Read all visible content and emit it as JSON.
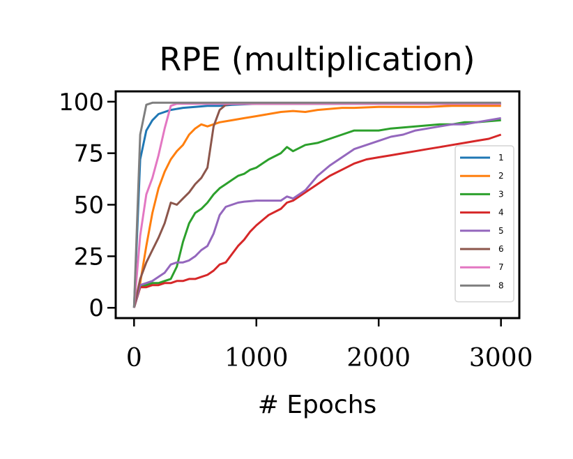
{
  "chart_data": {
    "type": "line",
    "title": "RPE (multiplication)",
    "xlabel": "# Epochs",
    "ylabel": "",
    "xlim": [
      -150,
      3150
    ],
    "ylim": [
      -5,
      105
    ],
    "xticks": [
      0,
      1000,
      2000,
      3000
    ],
    "yticks": [
      0,
      25,
      50,
      75,
      100
    ],
    "grid": false,
    "legend_position": "right",
    "series": [
      {
        "name": "1",
        "color": "#1f77b4",
        "x": [
          0,
          50,
          100,
          150,
          200,
          250,
          300,
          400,
          500,
          600,
          700,
          800,
          1000,
          1500,
          2000,
          2500,
          3000
        ],
        "y": [
          0,
          72,
          86,
          91,
          94,
          95,
          96,
          97,
          97.5,
          98,
          98,
          98.5,
          99,
          99,
          99,
          99,
          99
        ]
      },
      {
        "name": "2",
        "color": "#ff7f0e",
        "x": [
          0,
          50,
          100,
          150,
          200,
          250,
          300,
          350,
          400,
          450,
          500,
          550,
          600,
          700,
          800,
          900,
          1000,
          1100,
          1200,
          1300,
          1400,
          1500,
          1600,
          1700,
          1800,
          2000,
          2200,
          2400,
          2600,
          2800,
          3000
        ],
        "y": [
          0,
          12,
          30,
          46,
          58,
          66,
          72,
          76,
          79,
          84,
          87,
          89,
          88,
          90,
          91,
          92,
          93,
          94,
          95,
          95.5,
          95,
          96,
          96.5,
          97,
          97,
          97.5,
          97.5,
          97.5,
          98,
          98,
          98
        ]
      },
      {
        "name": "3",
        "color": "#2ca02c",
        "x": [
          0,
          50,
          100,
          150,
          200,
          250,
          300,
          350,
          400,
          450,
          500,
          550,
          600,
          650,
          700,
          750,
          800,
          850,
          900,
          950,
          1000,
          1100,
          1200,
          1250,
          1300,
          1400,
          1500,
          1600,
          1700,
          1800,
          1900,
          2000,
          2100,
          2200,
          2300,
          2400,
          2500,
          2600,
          2700,
          2800,
          2900,
          3000
        ],
        "y": [
          0,
          10,
          11,
          12,
          12,
          13,
          14,
          20,
          32,
          41,
          46,
          48,
          51,
          55,
          58,
          60,
          62,
          64,
          65,
          67,
          68,
          72,
          75,
          78,
          76,
          79,
          80,
          82,
          84,
          86,
          86,
          86,
          87,
          87.5,
          88,
          88.5,
          89,
          89,
          90,
          90,
          90.5,
          91
        ]
      },
      {
        "name": "4",
        "color": "#d62728",
        "x": [
          0,
          50,
          100,
          150,
          200,
          250,
          300,
          350,
          400,
          450,
          500,
          550,
          600,
          650,
          700,
          750,
          800,
          850,
          900,
          950,
          1000,
          1100,
          1200,
          1250,
          1300,
          1400,
          1500,
          1600,
          1700,
          1800,
          1900,
          2000,
          2100,
          2200,
          2300,
          2400,
          2500,
          2600,
          2700,
          2800,
          2900,
          3000
        ],
        "y": [
          0,
          10,
          10,
          11,
          11,
          12,
          12,
          13,
          13,
          14,
          14,
          15,
          16,
          18,
          21,
          22,
          26,
          30,
          33,
          37,
          40,
          45,
          48,
          51,
          52,
          56,
          60,
          64,
          67,
          70,
          72,
          73,
          74,
          75,
          76,
          77,
          78,
          79,
          80,
          81,
          82,
          84
        ]
      },
      {
        "name": "5",
        "color": "#9467bd",
        "x": [
          0,
          50,
          100,
          150,
          200,
          250,
          300,
          350,
          400,
          450,
          500,
          550,
          600,
          650,
          700,
          750,
          800,
          850,
          900,
          1000,
          1100,
          1200,
          1250,
          1300,
          1400,
          1500,
          1600,
          1700,
          1800,
          1900,
          2000,
          2100,
          2200,
          2300,
          2400,
          2500,
          2600,
          2700,
          2800,
          2900,
          3000
        ],
        "y": [
          0,
          11,
          12,
          13,
          15,
          17,
          21,
          22,
          22,
          23,
          25,
          28,
          30,
          36,
          45,
          49,
          50,
          51,
          51.5,
          52,
          52,
          52,
          54,
          53,
          57,
          64,
          69,
          73,
          77,
          79,
          81,
          83,
          84,
          86,
          87,
          88,
          89,
          89,
          90,
          91,
          92
        ]
      },
      {
        "name": "6",
        "color": "#8c564b",
        "x": [
          0,
          50,
          100,
          150,
          200,
          250,
          300,
          350,
          400,
          450,
          500,
          550,
          600,
          650,
          700,
          750,
          800,
          850,
          900,
          1000,
          1500,
          2000,
          2500,
          3000
        ],
        "y": [
          0,
          14,
          22,
          28,
          34,
          41,
          51,
          50,
          53,
          56,
          60,
          63,
          68,
          88,
          96,
          98.5,
          99,
          99,
          99,
          99,
          99,
          99,
          99,
          99
        ]
      },
      {
        "name": "7",
        "color": "#e377c2",
        "x": [
          0,
          50,
          100,
          150,
          200,
          250,
          300,
          350,
          400,
          500,
          1000,
          1500,
          2000,
          2500,
          3000
        ],
        "y": [
          0,
          35,
          55,
          63,
          74,
          87,
          98,
          99,
          99,
          99,
          99,
          99,
          99,
          99,
          99
        ]
      },
      {
        "name": "8",
        "color": "#7f7f7f",
        "x": [
          0,
          50,
          100,
          150,
          200,
          300,
          500,
          1000,
          1500,
          2000,
          2500,
          3000
        ],
        "y": [
          0,
          84,
          98.5,
          99.5,
          99.5,
          99.5,
          99.5,
          99.5,
          99.5,
          99.5,
          99.5,
          99.5
        ]
      }
    ]
  }
}
